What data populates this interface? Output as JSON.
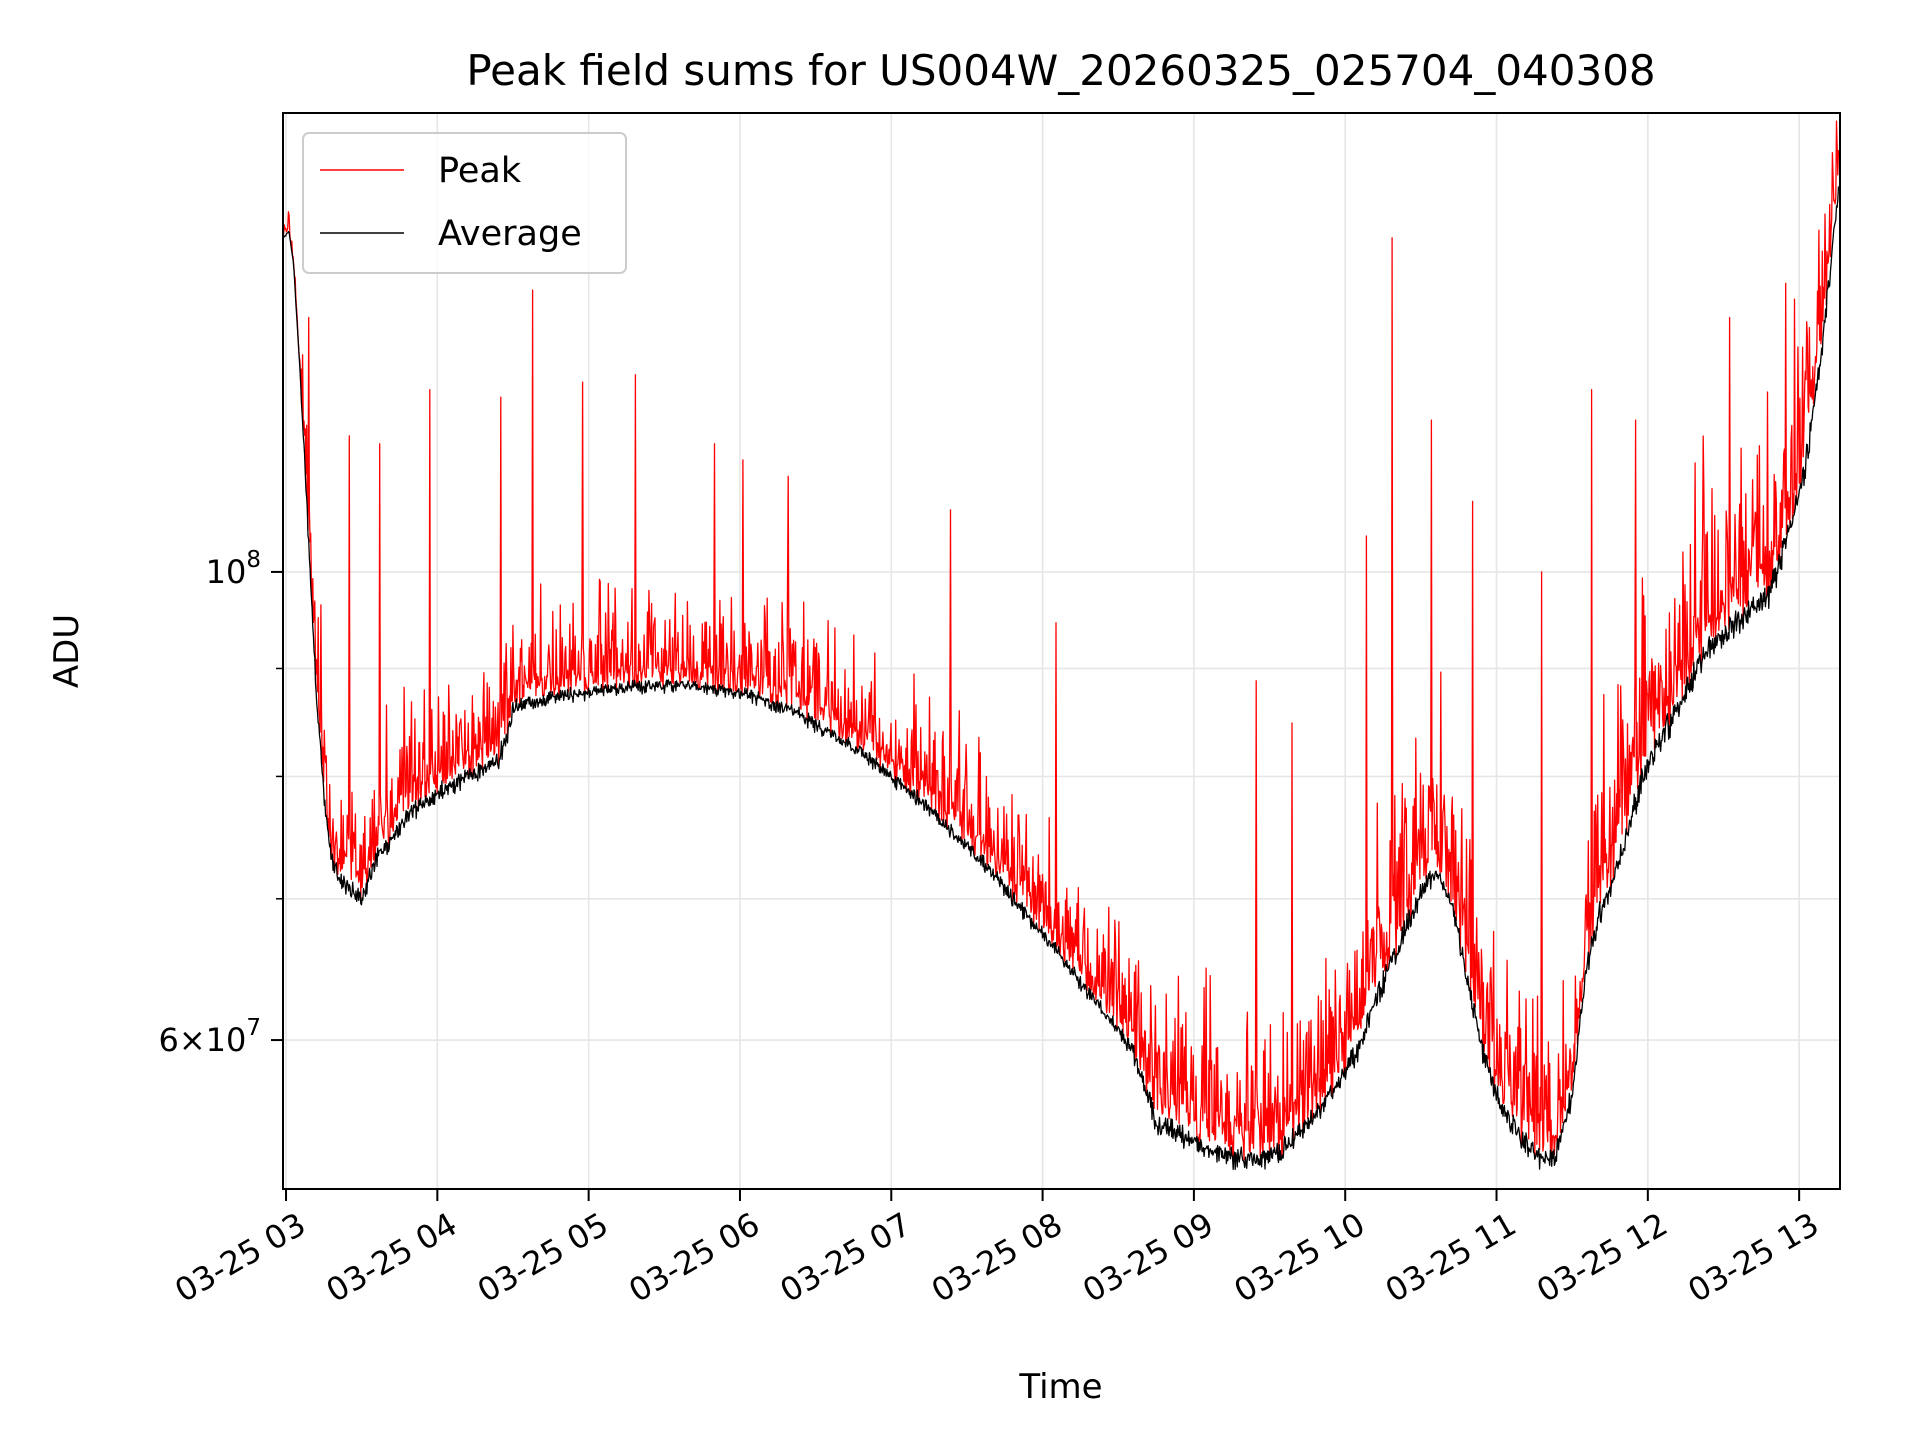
{
  "chart_data": {
    "type": "line",
    "title": "Peak field sums for US004W_20260325_025704_040308",
    "xlabel": "Time",
    "ylabel": "ADU",
    "yscale": "log",
    "grid": true,
    "legend_location": "upper-left",
    "xlim_hours": [
      2.98,
      13.27
    ],
    "ylim": [
      51000000,
      165000000
    ],
    "x_ticks": [
      {
        "hour": 3,
        "label": "03-25 03"
      },
      {
        "hour": 4,
        "label": "03-25 04"
      },
      {
        "hour": 5,
        "label": "03-25 05"
      },
      {
        "hour": 6,
        "label": "03-25 06"
      },
      {
        "hour": 7,
        "label": "03-25 07"
      },
      {
        "hour": 8,
        "label": "03-25 08"
      },
      {
        "hour": 9,
        "label": "03-25 09"
      },
      {
        "hour": 10,
        "label": "03-25 10"
      },
      {
        "hour": 11,
        "label": "03-25 11"
      },
      {
        "hour": 12,
        "label": "03-25 12"
      },
      {
        "hour": 13,
        "label": "03-25 13"
      }
    ],
    "y_major_ticks": [
      {
        "value": 100000000,
        "base": "10",
        "exp": "8"
      },
      {
        "value": 60000000,
        "mant": "6",
        "base": "10",
        "exp": "7"
      }
    ],
    "y_minor_grid": [
      70000000,
      80000000,
      90000000
    ],
    "series": [
      {
        "name": "Peak",
        "color": "#ff0000",
        "spikes": [
          [
            3.15,
            132000000.0
          ],
          [
            3.42,
            116000000.0
          ],
          [
            3.62,
            115000000.0
          ],
          [
            3.95,
            122000000.0
          ],
          [
            4.42,
            121000000.0
          ],
          [
            4.63,
            136000000.0
          ],
          [
            4.96,
            123000000.0
          ],
          [
            5.31,
            124000000.0
          ],
          [
            5.83,
            115000000.0
          ],
          [
            6.02,
            113000000.0
          ],
          [
            6.32,
            111000000.0
          ],
          [
            7.39,
            107000000.0
          ],
          [
            8.09,
            94600000.0
          ],
          [
            9.41,
            88800000.0
          ],
          [
            9.65,
            84800000.0
          ],
          [
            10.14,
            104000000.0
          ],
          [
            10.31,
            144000000.0
          ],
          [
            10.57,
            118000000.0
          ],
          [
            10.84,
            108000000.0
          ],
          [
            11.3,
            100000000.0
          ],
          [
            11.63,
            122000000.0
          ],
          [
            11.92,
            118000000.0
          ],
          [
            12.54,
            132000000.0
          ],
          [
            12.91,
            137000000.0
          ],
          [
            13.22,
            158000000.0
          ]
        ]
      },
      {
        "name": "Average",
        "color": "#000000",
        "baseline": [
          [
            2.98,
            144000000.0
          ],
          [
            3.02,
            145000000.0
          ],
          [
            3.05,
            140000000.0
          ],
          [
            3.1,
            122000000.0
          ],
          [
            3.15,
            104000000.0
          ],
          [
            3.2,
            88000000.0
          ],
          [
            3.25,
            79000000.0
          ],
          [
            3.3,
            73500000.0
          ],
          [
            3.4,
            71200000.0
          ],
          [
            3.5,
            70500000.0
          ],
          [
            3.6,
            73500000.0
          ],
          [
            3.8,
            77000000.0
          ],
          [
            4.0,
            79000000.0
          ],
          [
            4.2,
            80500000.0
          ],
          [
            4.4,
            81800000.0
          ],
          [
            4.46,
            84200000.0
          ],
          [
            4.5,
            86700000.0
          ],
          [
            4.8,
            87600000.0
          ],
          [
            5.2,
            88500000.0
          ],
          [
            5.6,
            88800000.0
          ],
          [
            6.0,
            88100000.0
          ],
          [
            6.4,
            86000000.0
          ],
          [
            6.8,
            82500000.0
          ],
          [
            7.2,
            78200000.0
          ],
          [
            7.6,
            73300000.0
          ],
          [
            8.0,
            67700000.0
          ],
          [
            8.4,
            62300000.0
          ],
          [
            8.6,
            59500000.0
          ],
          [
            8.7,
            57000000.0
          ],
          [
            8.75,
            55200000.0
          ],
          [
            9.0,
            54000000.0
          ],
          [
            9.2,
            53300000.0
          ],
          [
            9.4,
            53000000.0
          ],
          [
            9.6,
            53700000.0
          ],
          [
            9.8,
            55800000.0
          ],
          [
            10.0,
            58500000.0
          ],
          [
            10.1,
            60000000.0
          ],
          [
            10.2,
            63200000.0
          ],
          [
            10.4,
            68200000.0
          ],
          [
            10.5,
            71000000.0
          ],
          [
            10.6,
            72500000.0
          ],
          [
            10.7,
            70500000.0
          ],
          [
            10.8,
            65000000.0
          ],
          [
            10.9,
            60000000.0
          ],
          [
            11.0,
            57000000.0
          ],
          [
            11.1,
            55200000.0
          ],
          [
            11.2,
            53800000.0
          ],
          [
            11.3,
            53000000.0
          ],
          [
            11.4,
            53500000.0
          ],
          [
            11.5,
            57000000.0
          ],
          [
            11.6,
            66000000.0
          ],
          [
            11.7,
            70000000.0
          ],
          [
            11.8,
            73500000.0
          ],
          [
            11.9,
            77500000.0
          ],
          [
            12.0,
            82000000.0
          ],
          [
            12.2,
            87000000.0
          ],
          [
            12.4,
            93000000.0
          ],
          [
            12.6,
            95500000.0
          ],
          [
            12.8,
            98500000.0
          ],
          [
            12.95,
            106000000.0
          ],
          [
            13.05,
            114000000.0
          ],
          [
            13.15,
            129000000.0
          ],
          [
            13.22,
            143000000.0
          ],
          [
            13.27,
            155000000.0
          ]
        ]
      }
    ]
  }
}
